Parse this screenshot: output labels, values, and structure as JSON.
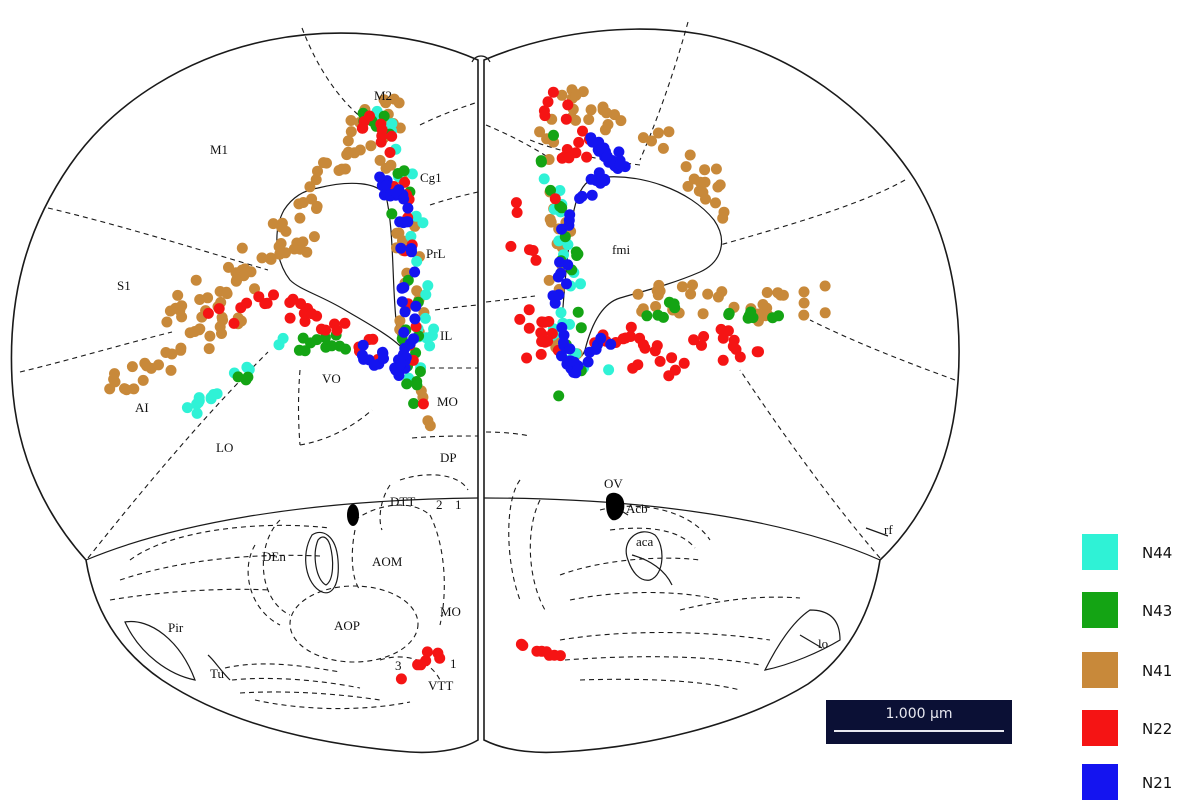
{
  "regions": {
    "M2": "M2",
    "M1": "M1",
    "Cg1": "Cg1",
    "fmi": "fmi",
    "PrL": "PrL",
    "S1": "S1",
    "IL": "IL",
    "VO": "VO",
    "AI": "AI",
    "MO_upper": "MO",
    "LO": "LO",
    "DP": "DP",
    "OV": "OV",
    "Acb": "Acb",
    "DTT": "DTT",
    "DTT2": "2",
    "DTT1": "1",
    "rf": "rf",
    "aca": "aca",
    "DEn": "DEn",
    "AOM": "AOM",
    "MO_lower": "MO",
    "Pir": "Pir",
    "AOP": "AOP",
    "lo": "lo",
    "Tu": "Tu",
    "VTT3": "3",
    "VTT1": "1",
    "VTT": "VTT"
  },
  "legend": [
    {
      "label": "N44",
      "color": "#2ff2d6"
    },
    {
      "label": "N43",
      "color": "#14a414"
    },
    {
      "label": "N41",
      "color": "#c8893a"
    },
    {
      "label": "N22",
      "color": "#f51414"
    },
    {
      "label": "N21",
      "color": "#1414f0"
    }
  ],
  "scale_bar": {
    "label": "1.000 µm"
  }
}
